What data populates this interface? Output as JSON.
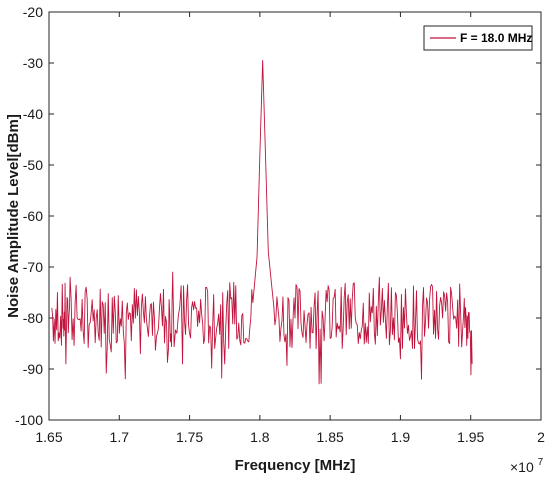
{
  "chart_data": {
    "type": "line",
    "xlabel": "Frequency [MHz]",
    "ylabel": "Noise Amplitude Level[dBm]",
    "x_multiplier": "×10",
    "x_multiplier_exp": "7",
    "xlim": [
      1.65,
      2.0
    ],
    "ylim": [
      -100,
      -20
    ],
    "x_ticks": [
      "1.65",
      "1.7",
      "1.75",
      "1.8",
      "1.85",
      "1.9",
      "1.95",
      "2"
    ],
    "x_tick_values": [
      1.65,
      1.7,
      1.75,
      1.8,
      1.85,
      1.9,
      1.95,
      2.0
    ],
    "y_ticks": [
      "-20",
      "-30",
      "-40",
      "-50",
      "-60",
      "-70",
      "-80",
      "-90",
      "-100"
    ],
    "y_tick_values": [
      -20,
      -30,
      -40,
      -50,
      -60,
      -70,
      -80,
      -90,
      -100
    ],
    "grid": false,
    "legend_position": "top-right",
    "line_color": "#c0143c",
    "series": [
      {
        "name": "F = 18.0 MHz",
        "x_start": 1.652,
        "x_end": 1.951,
        "baseline_mean": -79.5,
        "noise_range": [
          -93,
          -71
        ],
        "peak_x": 1.802,
        "peak_y": -29.5,
        "points": [
          [
            1.652,
            -78
          ],
          [
            1.656,
            -75
          ],
          [
            1.66,
            -82
          ],
          [
            1.662,
            -89
          ],
          [
            1.665,
            -72
          ],
          [
            1.67,
            -80
          ],
          [
            1.675,
            -85
          ],
          [
            1.68,
            -79
          ],
          [
            1.685,
            -83
          ],
          [
            1.69,
            -77
          ],
          [
            1.695,
            -76
          ],
          [
            1.7,
            -83
          ],
          [
            1.705,
            -79
          ],
          [
            1.71,
            -81
          ],
          [
            1.715,
            -87
          ],
          [
            1.72,
            -82
          ],
          [
            1.725,
            -80
          ],
          [
            1.73,
            -78
          ],
          [
            1.735,
            -86
          ],
          [
            1.738,
            -71
          ],
          [
            1.745,
            -89
          ],
          [
            1.75,
            -83
          ],
          [
            1.755,
            -78
          ],
          [
            1.76,
            -85
          ],
          [
            1.765,
            -82
          ],
          [
            1.77,
            -81
          ],
          [
            1.775,
            -89
          ],
          [
            1.78,
            -76
          ],
          [
            1.785,
            -81
          ],
          [
            1.79,
            -84
          ],
          [
            1.795,
            -77
          ],
          [
            1.798,
            -68
          ],
          [
            1.8,
            -48
          ],
          [
            1.802,
            -29.5
          ],
          [
            1.804,
            -48
          ],
          [
            1.806,
            -67
          ],
          [
            1.81,
            -78
          ],
          [
            1.815,
            -82
          ],
          [
            1.82,
            -76
          ],
          [
            1.825,
            -80
          ],
          [
            1.83,
            -83
          ],
          [
            1.835,
            -79
          ],
          [
            1.84,
            -86
          ],
          [
            1.845,
            -80
          ],
          [
            1.85,
            -84
          ],
          [
            1.855,
            -81
          ],
          [
            1.86,
            -76
          ],
          [
            1.865,
            -82
          ],
          [
            1.87,
            -85
          ],
          [
            1.875,
            -81
          ],
          [
            1.88,
            -79
          ],
          [
            1.885,
            -72
          ],
          [
            1.89,
            -84
          ],
          [
            1.895,
            -80
          ],
          [
            1.9,
            -88
          ],
          [
            1.905,
            -83
          ],
          [
            1.91,
            -86
          ],
          [
            1.915,
            -92
          ],
          [
            1.92,
            -82
          ],
          [
            1.925,
            -84
          ],
          [
            1.93,
            -80
          ],
          [
            1.935,
            -85
          ],
          [
            1.94,
            -82
          ],
          [
            1.945,
            -79
          ],
          [
            1.948,
            -84
          ],
          [
            1.951,
            -89
          ]
        ]
      }
    ]
  }
}
